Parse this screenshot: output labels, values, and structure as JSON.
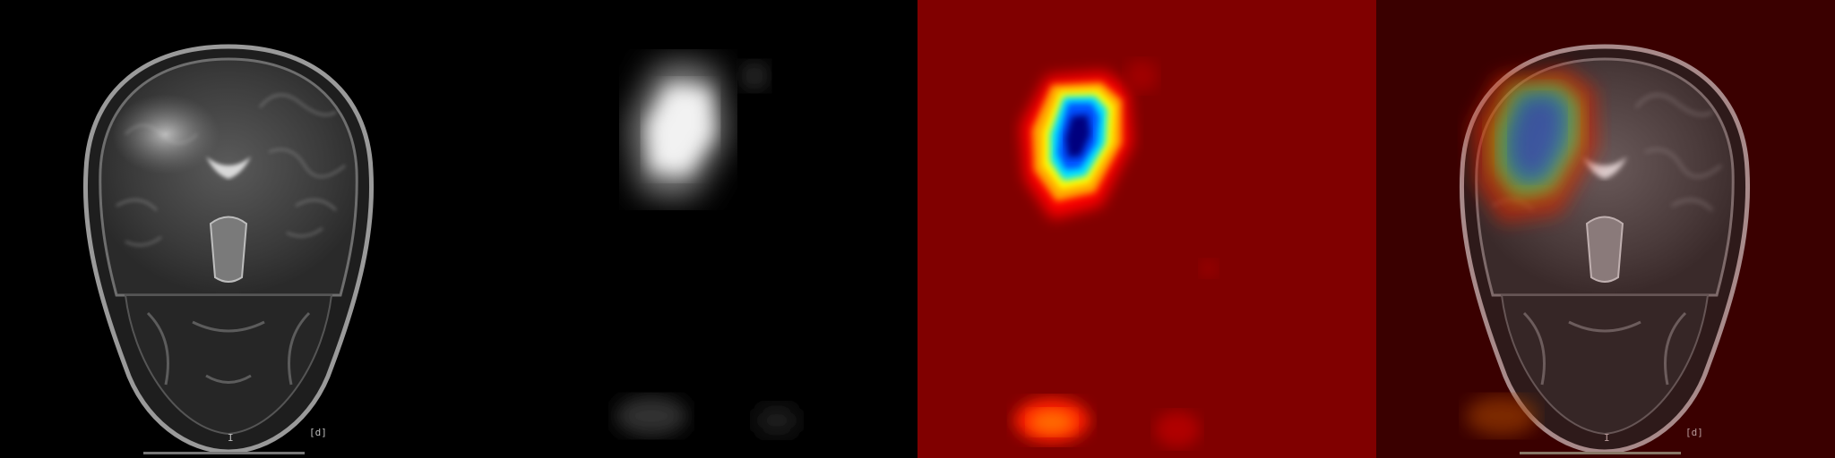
{
  "panels": [
    {
      "name": "mri-original",
      "slice_marker": "I",
      "orientation_tag": "[d]"
    },
    {
      "name": "activation-grayscale"
    },
    {
      "name": "activation-jet-heatmap"
    },
    {
      "name": "heatmap-overlay",
      "slice_marker": "I",
      "orientation_tag": "[d]"
    }
  ],
  "colors": {
    "background": "#000000",
    "heatmap_low": "#800000",
    "heatmap_high": "#00007f",
    "overlay_tint": "#3a0000"
  }
}
